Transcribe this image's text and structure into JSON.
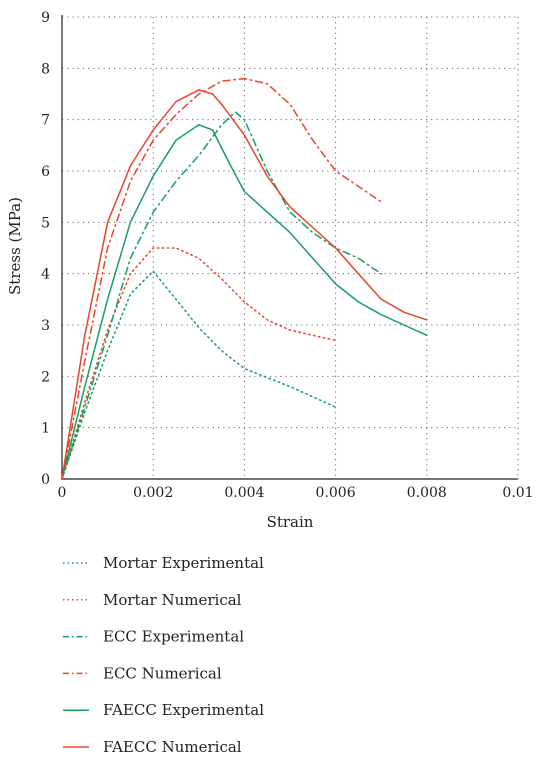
{
  "chart_data": {
    "type": "line",
    "xlabel": "Strain",
    "ylabel": "Stress (MPa)",
    "xlim": [
      0,
      0.01
    ],
    "ylim": [
      0,
      9
    ],
    "x_ticks": [
      "0",
      "0.002",
      "0.004",
      "0.006",
      "0.008",
      "0.01"
    ],
    "y_ticks": [
      "0",
      "1",
      "2",
      "3",
      "4",
      "5",
      "6",
      "7",
      "8",
      "9"
    ],
    "grid": "dotted",
    "legend_position": "bottom",
    "series": [
      {
        "name": "Mortar Experimental",
        "color": "#16a05a",
        "style": "dotted",
        "points": [
          [
            0,
            0
          ],
          [
            0.0005,
            1.3
          ],
          [
            0.001,
            2.5
          ],
          [
            0.0015,
            3.6
          ],
          [
            0.002,
            4.05
          ],
          [
            0.0025,
            3.5
          ],
          [
            0.003,
            2.95
          ],
          [
            0.0035,
            2.5
          ],
          [
            0.004,
            2.15
          ],
          [
            0.005,
            1.8
          ],
          [
            0.006,
            1.4
          ]
        ]
      },
      {
        "name": "Mortar Numerical",
        "color": "#e8452c",
        "style": "dotted",
        "points": [
          [
            0,
            0
          ],
          [
            0.0005,
            1.5
          ],
          [
            0.001,
            2.9
          ],
          [
            0.0015,
            4.0
          ],
          [
            0.002,
            4.5
          ],
          [
            0.0025,
            4.5
          ],
          [
            0.003,
            4.3
          ],
          [
            0.0035,
            3.9
          ],
          [
            0.004,
            3.45
          ],
          [
            0.0045,
            3.1
          ],
          [
            0.005,
            2.9
          ],
          [
            0.0055,
            2.8
          ],
          [
            0.006,
            2.7
          ]
        ]
      },
      {
        "name": "ECC Experimental",
        "color": "#16a05a",
        "style": "dashdot",
        "points": [
          [
            0,
            0
          ],
          [
            0.0005,
            1.4
          ],
          [
            0.001,
            2.8
          ],
          [
            0.0015,
            4.3
          ],
          [
            0.002,
            5.2
          ],
          [
            0.0025,
            5.8
          ],
          [
            0.003,
            6.3
          ],
          [
            0.0035,
            6.9
          ],
          [
            0.0038,
            7.15
          ],
          [
            0.004,
            7.0
          ],
          [
            0.0045,
            6.0
          ],
          [
            0.005,
            5.2
          ],
          [
            0.0055,
            4.8
          ],
          [
            0.006,
            4.5
          ],
          [
            0.0065,
            4.3
          ],
          [
            0.007,
            4.0
          ]
        ]
      },
      {
        "name": "ECC Numerical",
        "color": "#e8452c",
        "style": "dashdot",
        "points": [
          [
            0,
            0
          ],
          [
            0.0005,
            2.3
          ],
          [
            0.001,
            4.5
          ],
          [
            0.0015,
            5.8
          ],
          [
            0.002,
            6.6
          ],
          [
            0.0025,
            7.1
          ],
          [
            0.003,
            7.5
          ],
          [
            0.0035,
            7.75
          ],
          [
            0.004,
            7.8
          ],
          [
            0.0045,
            7.7
          ],
          [
            0.005,
            7.3
          ],
          [
            0.0055,
            6.6
          ],
          [
            0.006,
            6.0
          ],
          [
            0.0065,
            5.7
          ],
          [
            0.007,
            5.4
          ]
        ]
      },
      {
        "name": "FAECC Experimental",
        "color": "#16a05a",
        "style": "solid",
        "points": [
          [
            0,
            0
          ],
          [
            0.0005,
            1.8
          ],
          [
            0.001,
            3.5
          ],
          [
            0.0015,
            5.0
          ],
          [
            0.002,
            5.9
          ],
          [
            0.0025,
            6.6
          ],
          [
            0.003,
            6.9
          ],
          [
            0.0033,
            6.8
          ],
          [
            0.0037,
            6.1
          ],
          [
            0.004,
            5.6
          ],
          [
            0.0045,
            5.2
          ],
          [
            0.005,
            4.8
          ],
          [
            0.0055,
            4.3
          ],
          [
            0.006,
            3.8
          ],
          [
            0.0065,
            3.45
          ],
          [
            0.007,
            3.2
          ],
          [
            0.0075,
            3.0
          ],
          [
            0.008,
            2.8
          ]
        ]
      },
      {
        "name": "FAECC Numerical",
        "color": "#e8452c",
        "style": "solid",
        "points": [
          [
            0,
            0
          ],
          [
            0.0005,
            2.8
          ],
          [
            0.001,
            5.0
          ],
          [
            0.0015,
            6.1
          ],
          [
            0.002,
            6.8
          ],
          [
            0.0025,
            7.35
          ],
          [
            0.003,
            7.58
          ],
          [
            0.0033,
            7.5
          ],
          [
            0.0035,
            7.3
          ],
          [
            0.004,
            6.7
          ],
          [
            0.0045,
            5.9
          ],
          [
            0.005,
            5.3
          ],
          [
            0.0055,
            4.9
          ],
          [
            0.006,
            4.5
          ],
          [
            0.0065,
            4.0
          ],
          [
            0.007,
            3.5
          ],
          [
            0.0075,
            3.25
          ],
          [
            0.008,
            3.1
          ]
        ]
      }
    ]
  }
}
